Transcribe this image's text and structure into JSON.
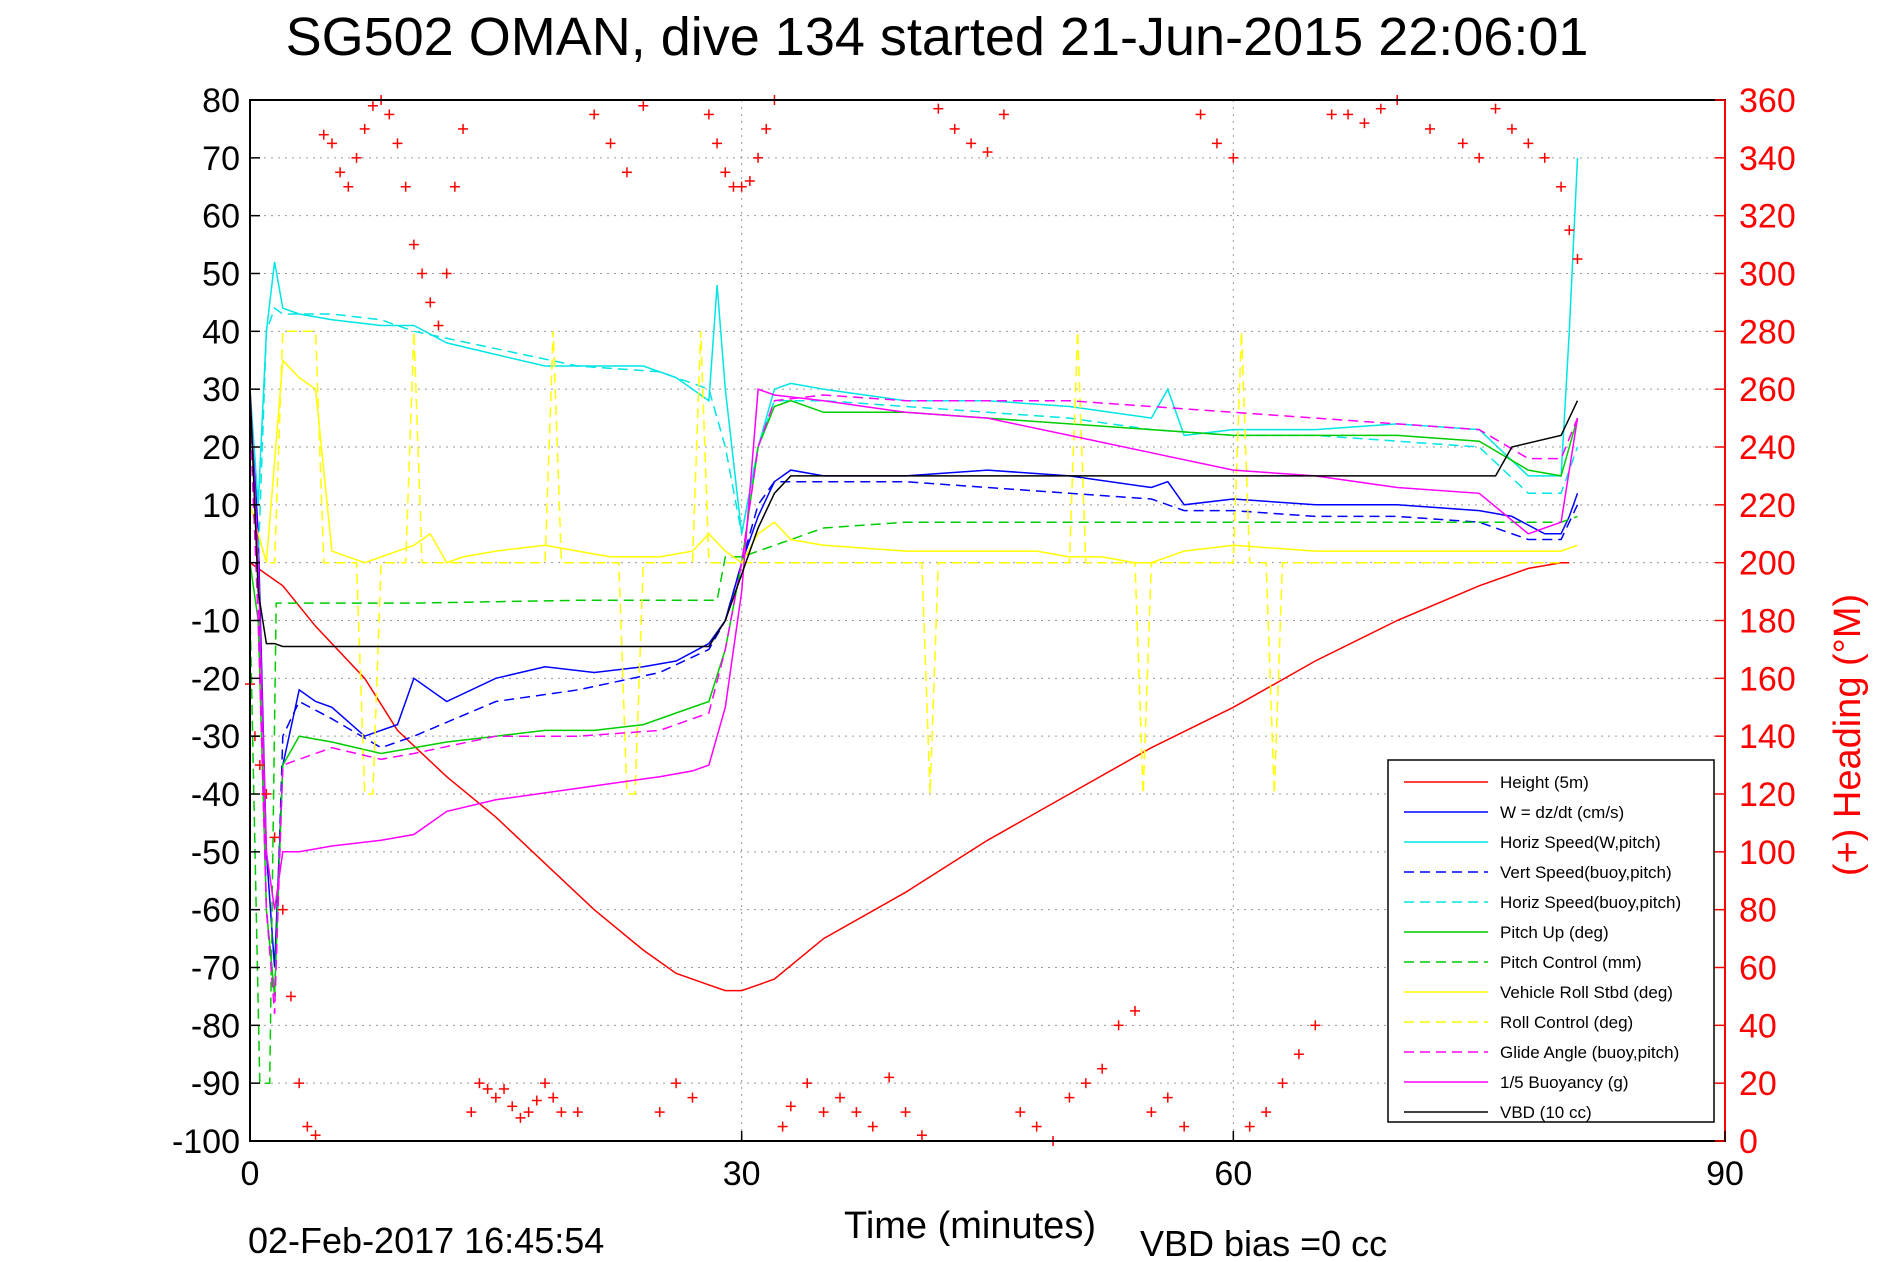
{
  "chart_data": {
    "type": "line",
    "title": "SG502 OMAN, dive 134 started 21-Jun-2015 22:06:01",
    "xlabel": "Time (minutes)",
    "ylabel": "",
    "y2label": "(+) Heading (°M)",
    "footer_left": "02-Feb-2017 16:45:54",
    "footer_right": "VBD bias =0 cc",
    "xlim": [
      0,
      90
    ],
    "ylim": [
      -100,
      80
    ],
    "y2lim": [
      0,
      360
    ],
    "xticks": [
      "0",
      "30",
      "60",
      "90"
    ],
    "xtick_values": [
      0,
      30,
      60,
      90
    ],
    "yticks": [
      "80",
      "70",
      "60",
      "50",
      "40",
      "30",
      "20",
      "10",
      "0",
      "-10",
      "-20",
      "-30",
      "-40",
      "-50",
      "-60",
      "-70",
      "-80",
      "-90",
      "-100"
    ],
    "ytick_values": [
      80,
      70,
      60,
      50,
      40,
      30,
      20,
      10,
      0,
      -10,
      -20,
      -30,
      -40,
      -50,
      -60,
      -70,
      -80,
      -90,
      -100
    ],
    "y2ticks": [
      "360",
      "340",
      "320",
      "300",
      "280",
      "260",
      "240",
      "220",
      "200",
      "180",
      "160",
      "140",
      "120",
      "100",
      "80",
      "60",
      "40",
      "20",
      "0"
    ],
    "y2tick_values": [
      360,
      340,
      320,
      300,
      280,
      260,
      240,
      220,
      200,
      180,
      160,
      140,
      120,
      100,
      80,
      60,
      40,
      20,
      0
    ],
    "grid": true,
    "legend_position": "lower-right",
    "series": [
      {
        "name": "Height (5m)",
        "color": "#ff0000",
        "dash": "solid",
        "x": [
          0,
          1,
          2,
          4,
          7,
          9,
          12,
          15,
          18,
          21,
          24,
          26,
          28,
          29,
          30,
          31,
          32,
          35,
          40,
          45,
          50,
          55,
          60,
          65,
          70,
          75,
          78,
          80,
          80.5
        ],
        "y": [
          0,
          -2,
          -4,
          -11,
          -20,
          -29,
          -37,
          -44,
          -52,
          -60,
          -67,
          -71,
          -73,
          -74,
          -74,
          -73,
          -72,
          -65,
          -57,
          -48,
          -40,
          -32,
          -25,
          -17,
          -10,
          -4,
          -1,
          0,
          0
        ]
      },
      {
        "name": "W = dz/dt (cm/s)",
        "color": "#0000ff",
        "dash": "solid",
        "x": [
          0,
          0.5,
          1,
          1.5,
          2,
          3,
          4,
          5,
          7,
          9,
          10,
          12,
          15,
          18,
          21,
          24,
          26,
          28,
          29,
          30,
          31,
          32,
          33,
          35,
          40,
          45,
          50,
          55,
          56,
          57,
          60,
          65,
          70,
          75,
          77,
          79,
          80,
          80.5,
          81
        ],
        "y": [
          30,
          5,
          -50,
          -70,
          -35,
          -22,
          -24,
          -25,
          -30,
          -28,
          -20,
          -24,
          -20,
          -18,
          -19,
          -18,
          -17,
          -14,
          -10,
          0,
          8,
          14,
          16,
          15,
          15,
          16,
          15,
          13,
          14,
          10,
          11,
          10,
          10,
          9,
          8,
          5,
          5,
          8,
          12
        ]
      },
      {
        "name": "Horiz Speed(W,pitch)",
        "color": "#00e5e5",
        "dash": "solid",
        "x": [
          0,
          0.5,
          1,
          1.5,
          2,
          3,
          5,
          8,
          10,
          12,
          15,
          18,
          21,
          24,
          26,
          28,
          28.5,
          29,
          30,
          31,
          32,
          33,
          35,
          40,
          45,
          50,
          55,
          56,
          57,
          60,
          65,
          70,
          75,
          78,
          80,
          80.5,
          81
        ],
        "y": [
          30,
          10,
          40,
          52,
          44,
          43,
          42,
          41,
          41,
          38,
          36,
          34,
          34,
          34,
          32,
          28,
          48,
          30,
          5,
          20,
          30,
          31,
          30,
          28,
          28,
          27,
          25,
          30,
          22,
          23,
          23,
          24,
          23,
          15,
          15,
          40,
          70
        ]
      },
      {
        "name": "Vert Speed(buoy,pitch)",
        "color": "#0000ff",
        "dash": "dashed",
        "x": [
          0,
          0.5,
          1,
          1.5,
          2,
          3,
          5,
          8,
          10,
          15,
          20,
          25,
          28,
          29,
          30,
          31,
          32,
          35,
          40,
          45,
          50,
          55,
          57,
          60,
          65,
          70,
          75,
          78,
          80,
          81
        ],
        "y": [
          25,
          0,
          -60,
          -75,
          -30,
          -24,
          -27,
          -32,
          -30,
          -24,
          -22,
          -19,
          -15,
          -10,
          0,
          10,
          14,
          14,
          14,
          13,
          12,
          11,
          9,
          9,
          8,
          8,
          7,
          4,
          4,
          10
        ]
      },
      {
        "name": "Horiz Speed(buoy,pitch)",
        "color": "#00e5e5",
        "dash": "dashed",
        "x": [
          0,
          0.5,
          1,
          1.5,
          2,
          5,
          8,
          10,
          15,
          20,
          25,
          28,
          29,
          30,
          31,
          32,
          35,
          40,
          45,
          50,
          55,
          60,
          65,
          70,
          75,
          78,
          80,
          81
        ],
        "y": [
          25,
          0,
          40,
          44,
          43,
          43,
          42,
          40,
          37,
          34,
          33,
          30,
          20,
          5,
          20,
          28,
          28,
          27,
          26,
          25,
          23,
          22,
          22,
          21,
          20,
          12,
          12,
          20
        ]
      },
      {
        "name": "Pitch Up (deg)",
        "color": "#00cc00",
        "dash": "solid",
        "x": [
          0,
          0.5,
          1,
          1.5,
          2,
          3,
          5,
          8,
          10,
          12,
          15,
          18,
          21,
          24,
          26,
          28,
          29,
          30,
          31,
          32,
          33,
          35,
          40,
          45,
          50,
          55,
          60,
          65,
          70,
          75,
          78,
          80,
          81
        ],
        "y": [
          0,
          -10,
          -60,
          -75,
          -35,
          -30,
          -31,
          -33,
          -32,
          -31,
          -30,
          -29,
          -29,
          -28,
          -26,
          -24,
          -15,
          0,
          20,
          27,
          28,
          26,
          26,
          25,
          24,
          23,
          22,
          22,
          22,
          21,
          16,
          15,
          25
        ]
      },
      {
        "name": "Pitch Control (mm)",
        "color": "#00cc00",
        "dash": "dashed",
        "x": [
          0,
          0.6,
          1.2,
          1.6,
          2,
          10,
          20,
          28.5,
          29,
          30,
          35,
          40,
          50,
          60,
          70,
          80,
          81
        ],
        "y": [
          -8,
          -90,
          -90,
          -7,
          -7,
          -7,
          -6.5,
          -6.5,
          1,
          1,
          6,
          7,
          7,
          7,
          7,
          7,
          8
        ]
      },
      {
        "name": "Vehicle Roll Stbd (deg)",
        "color": "#ffff00",
        "dash": "solid",
        "x": [
          0,
          1,
          2,
          3,
          4,
          5,
          7,
          9,
          10,
          11,
          12,
          13,
          15,
          18,
          20,
          22,
          25,
          27,
          28,
          29,
          30,
          31,
          32,
          33,
          35,
          40,
          45,
          48,
          50,
          52,
          54,
          55,
          57,
          60,
          65,
          70,
          75,
          80,
          81
        ],
        "y": [
          10,
          0,
          35,
          32,
          30,
          2,
          0,
          2,
          3,
          5,
          0,
          1,
          2,
          3,
          2,
          1,
          1,
          2,
          5,
          2,
          0,
          5,
          7,
          4,
          3,
          2,
          2,
          2,
          1,
          1,
          0,
          0,
          2,
          3,
          2,
          2,
          2,
          2,
          3
        ]
      },
      {
        "name": "Roll Control (deg)",
        "color": "#ffff00",
        "dash": "dashed",
        "x": [
          0,
          1,
          1.5,
          2,
          2.5,
          4,
          4.5,
          5,
          6.5,
          7,
          7.5,
          8,
          9.5,
          10,
          10.5,
          11,
          18,
          18.5,
          19,
          22.5,
          23,
          23.5,
          24,
          27,
          27.5,
          28,
          28.5,
          30,
          41,
          41.5,
          42,
          50,
          50.5,
          51,
          54,
          54.5,
          55,
          60,
          60.5,
          61,
          62,
          62.5,
          63,
          80
        ],
        "y": [
          10,
          0,
          0,
          40,
          40,
          40,
          0,
          0,
          0,
          -40,
          -40,
          0,
          0,
          40,
          0,
          0,
          0,
          40,
          0,
          0,
          -40,
          -40,
          0,
          0,
          40,
          0,
          0,
          0,
          0,
          -40,
          0,
          0,
          40,
          0,
          0,
          -40,
          0,
          0,
          40,
          0,
          0,
          -40,
          0,
          0
        ]
      },
      {
        "name": "Glide Angle (buoy,pitch)",
        "color": "#ff00ff",
        "dash": "dashed",
        "x": [
          0,
          0.5,
          1,
          1.5,
          2,
          5,
          8,
          10,
          15,
          20,
          25,
          28,
          29,
          30,
          31,
          32,
          35,
          40,
          45,
          50,
          55,
          60,
          65,
          70,
          75,
          78,
          80,
          81
        ],
        "y": [
          25,
          -10,
          -60,
          -78,
          -35,
          -32,
          -34,
          -33,
          -30,
          -30,
          -29,
          -26,
          -15,
          0,
          20,
          28,
          29,
          28,
          28,
          28,
          27,
          26,
          25,
          24,
          23,
          18,
          18,
          25
        ]
      },
      {
        "name": "1/5 Buoyancy (g)",
        "color": "#ff00ff",
        "dash": "solid",
        "x": [
          0,
          0.5,
          1,
          1.5,
          2,
          3,
          5,
          8,
          10,
          12,
          15,
          20,
          25,
          27,
          28,
          29,
          30,
          31,
          32,
          35,
          40,
          45,
          50,
          55,
          60,
          65,
          70,
          75,
          78,
          80,
          81
        ],
        "y": [
          30,
          0,
          -50,
          -60,
          -50,
          -50,
          -49,
          -48,
          -47,
          -43,
          -41,
          -39,
          -37,
          -36,
          -35,
          -25,
          -5,
          30,
          29,
          28,
          26,
          25,
          22,
          19,
          16,
          15,
          13,
          12,
          5,
          7,
          25
        ]
      },
      {
        "name": "VBD (10 cc)",
        "color": "#000000",
        "dash": "solid",
        "x": [
          0,
          0.5,
          1,
          1.5,
          2,
          10,
          20,
          28,
          29,
          30,
          31,
          32,
          33,
          40,
          50,
          57,
          58,
          70,
          76,
          77,
          80,
          81
        ],
        "y": [
          30,
          -5,
          -14,
          -14,
          -14.5,
          -14.5,
          -14.5,
          -14.5,
          -10,
          -2,
          6,
          12,
          15,
          15,
          15,
          15,
          15,
          15,
          15,
          20,
          22,
          28
        ]
      }
    ],
    "heading_series": {
      "name": "(+) Heading (°M)",
      "color": "#ff0000",
      "marker": "+",
      "x": [
        0,
        0.3,
        0.6,
        1,
        1.5,
        2,
        2.5,
        3,
        3.5,
        4,
        4.5,
        5,
        5.5,
        6,
        6.5,
        7,
        7.5,
        8,
        8.5,
        9,
        9.5,
        10,
        10.5,
        11,
        11.5,
        12,
        12.5,
        13,
        13.5,
        14,
        14.5,
        15,
        15.5,
        16,
        16.5,
        17,
        17.5,
        18,
        18.5,
        19,
        20,
        21,
        22,
        23,
        24,
        25,
        26,
        27,
        28,
        28.5,
        29,
        29.5,
        30,
        30.5,
        31,
        31.5,
        32,
        32.5,
        33,
        34,
        35,
        36,
        37,
        38,
        39,
        40,
        41,
        42,
        43,
        44,
        45,
        46,
        47,
        48,
        49,
        50,
        51,
        52,
        53,
        54,
        55,
        56,
        57,
        58,
        59,
        60,
        61,
        62,
        63,
        64,
        65,
        66,
        67,
        68,
        69,
        70,
        72,
        74,
        75,
        76,
        77,
        78,
        79,
        80,
        80.5,
        81
      ],
      "y": [
        158,
        140,
        130,
        120,
        105,
        80,
        50,
        20,
        5,
        2,
        348,
        345,
        335,
        330,
        340,
        350,
        358,
        360,
        355,
        345,
        330,
        310,
        300,
        290,
        282,
        300,
        330,
        350,
        10,
        20,
        18,
        15,
        18,
        12,
        8,
        10,
        14,
        20,
        15,
        10,
        10,
        355,
        345,
        335,
        358,
        10,
        20,
        15,
        355,
        345,
        335,
        330,
        330,
        332,
        340,
        350,
        360,
        5,
        12,
        20,
        10,
        15,
        10,
        5,
        22,
        10,
        2,
        357,
        350,
        345,
        342,
        355,
        10,
        5,
        0,
        15,
        20,
        25,
        40,
        45,
        10,
        15,
        5,
        355,
        345,
        340,
        5,
        10,
        20,
        30,
        40,
        355,
        355,
        352,
        357,
        360,
        350,
        345,
        340,
        357,
        350,
        345,
        340,
        330,
        315,
        305
      ]
    }
  }
}
